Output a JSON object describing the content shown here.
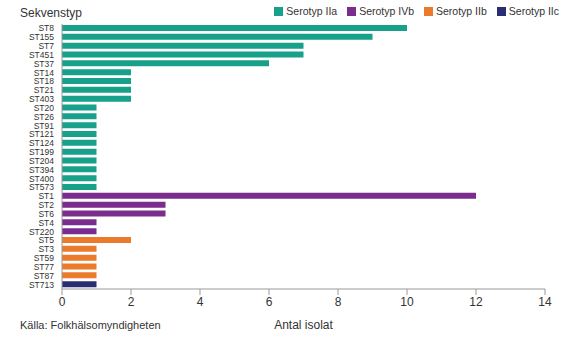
{
  "chart_data": {
    "type": "bar",
    "orientation": "horizontal",
    "y_label": "Sekvenstyp",
    "x_label": "Antal isolat",
    "source": "Källa: Folkhälsomyndigheten",
    "categories": [
      "ST8",
      "ST155",
      "ST7",
      "ST451",
      "ST37",
      "ST14",
      "ST18",
      "ST21",
      "ST403",
      "ST20",
      "ST26",
      "ST91",
      "ST121",
      "ST124",
      "ST199",
      "ST204",
      "ST394",
      "ST400",
      "ST573",
      "ST1",
      "ST2",
      "ST6",
      "ST4",
      "ST220",
      "ST5",
      "ST3",
      "ST59",
      "ST77",
      "ST87",
      "ST713"
    ],
    "series": [
      {
        "name": "Serotyp IIa",
        "color": "#17a08a",
        "values": [
          10,
          9,
          7,
          7,
          6,
          2,
          2,
          2,
          2,
          1,
          1,
          1,
          1,
          1,
          1,
          1,
          1,
          1,
          1,
          null,
          null,
          null,
          null,
          null,
          null,
          null,
          null,
          null,
          null,
          null
        ]
      },
      {
        "name": "Serotyp IVb",
        "color": "#7b2d8e",
        "values": [
          null,
          null,
          null,
          null,
          null,
          null,
          null,
          null,
          null,
          null,
          null,
          null,
          null,
          null,
          null,
          null,
          null,
          null,
          null,
          12,
          3,
          3,
          1,
          1,
          null,
          null,
          null,
          null,
          null,
          null
        ]
      },
      {
        "name": "Serotyp IIb",
        "color": "#ea7a2c",
        "values": [
          null,
          null,
          null,
          null,
          null,
          null,
          null,
          null,
          null,
          null,
          null,
          null,
          null,
          null,
          null,
          null,
          null,
          null,
          null,
          null,
          null,
          null,
          null,
          null,
          2,
          1,
          1,
          1,
          1,
          null
        ]
      },
      {
        "name": "Serotyp IIc",
        "color": "#2b2d72",
        "values": [
          null,
          null,
          null,
          null,
          null,
          null,
          null,
          null,
          null,
          null,
          null,
          null,
          null,
          null,
          null,
          null,
          null,
          null,
          null,
          null,
          null,
          null,
          null,
          null,
          null,
          null,
          null,
          null,
          null,
          1
        ]
      }
    ],
    "xlim": [
      0,
      14
    ],
    "xticks": [
      0,
      2,
      4,
      6,
      8,
      10,
      12,
      14
    ],
    "grid": false,
    "legend": "top"
  }
}
